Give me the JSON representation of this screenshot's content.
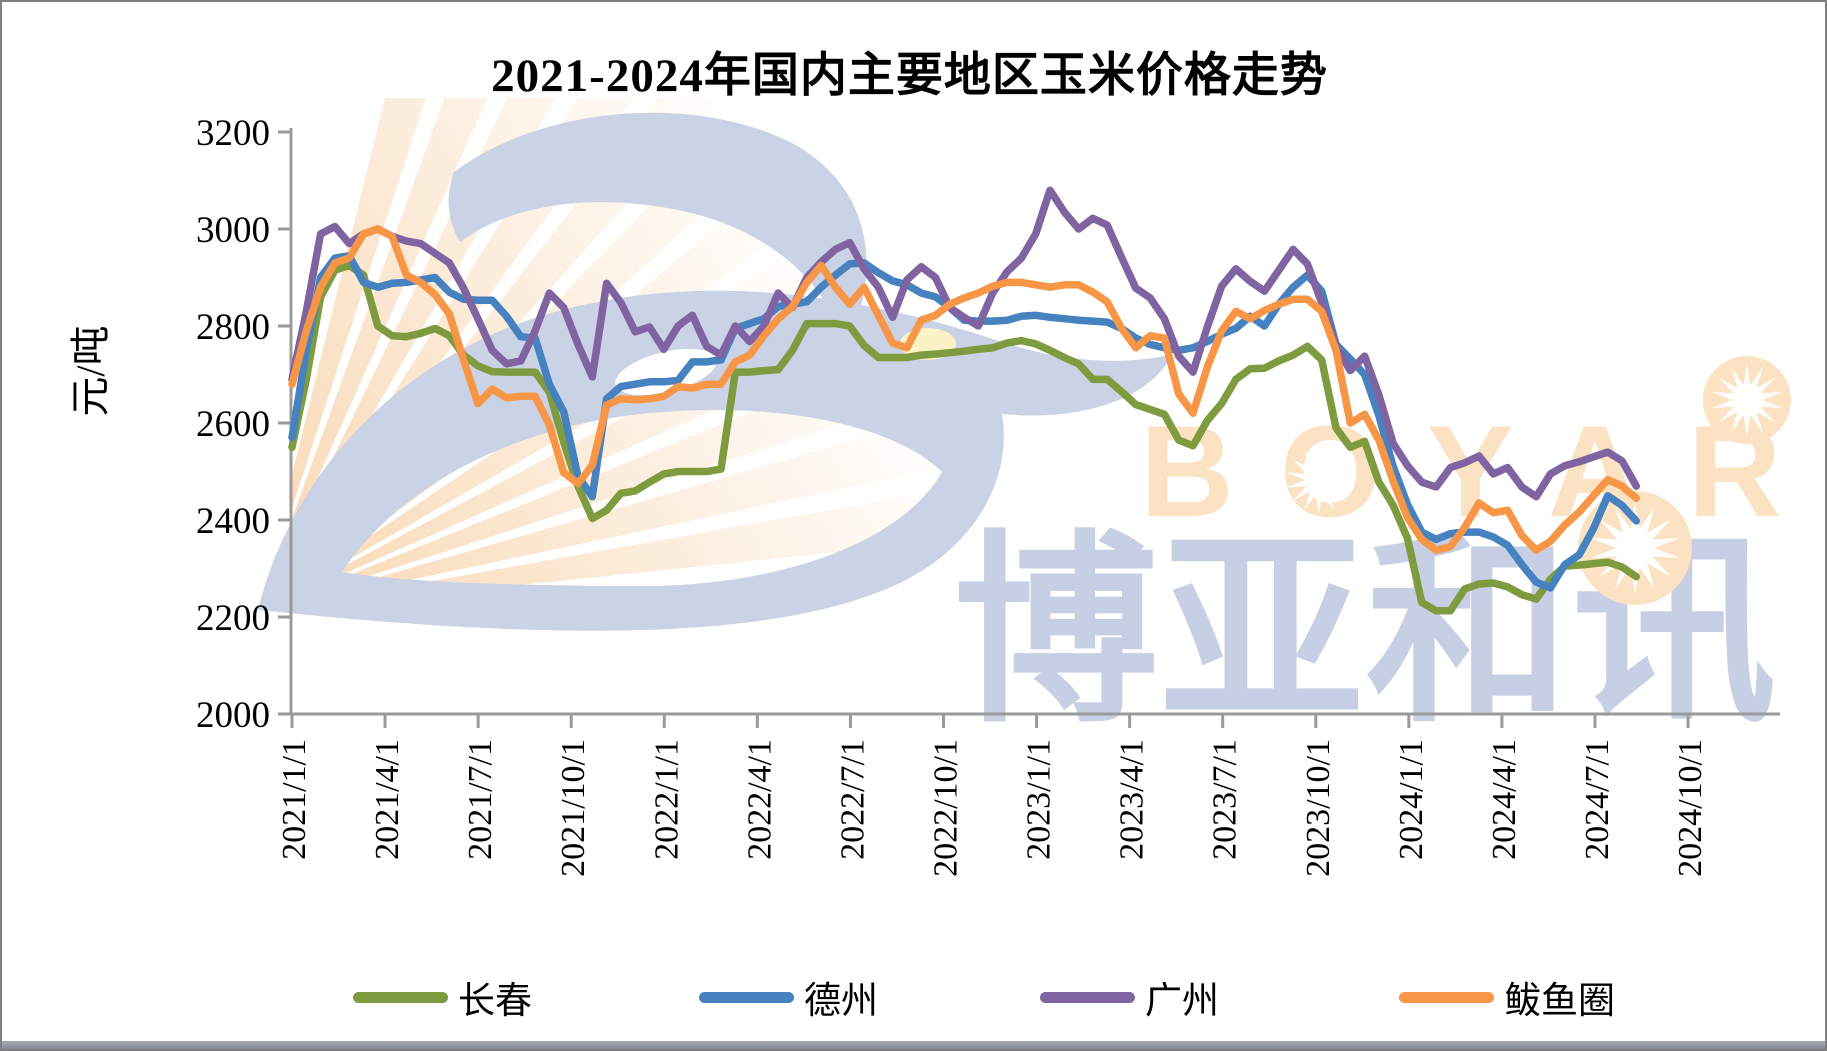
{
  "title": "2021-2024年国内主要地区玉米价格走势",
  "watermark": {
    "cn": "博亚和讯",
    "en": "BOYAR"
  },
  "y_axis": {
    "title": "元/吨",
    "ticks": [
      3200,
      3000,
      2800,
      2600,
      2400,
      2200,
      2000
    ]
  },
  "x_axis": {
    "tick_labels": [
      "2021/1/1",
      "2021/4/1",
      "2021/7/1",
      "2021/10/1",
      "2022/1/1",
      "2022/4/1",
      "2022/7/1",
      "2022/10/1",
      "2023/1/1",
      "2023/4/1",
      "2023/7/1",
      "2023/10/1",
      "2024/1/1",
      "2024/4/1",
      "2024/7/1",
      "2024/10/1"
    ]
  },
  "chart_data": {
    "type": "line",
    "title": "2021-2024年国内主要地区玉米价格走势",
    "xlabel": "",
    "ylabel": "元/吨",
    "ylim": [
      2000,
      3200
    ],
    "y_ticks": [
      3200,
      3000,
      2800,
      2600,
      2400,
      2200,
      2000
    ],
    "x_tick_labels": [
      "2021/1/1",
      "2021/4/1",
      "2021/7/1",
      "2021/10/1",
      "2022/1/1",
      "2022/4/1",
      "2022/7/1",
      "2022/10/1",
      "2023/1/1",
      "2023/4/1",
      "2023/7/1",
      "2023/10/1",
      "2024/1/1",
      "2024/4/1",
      "2024/7/1",
      "2024/10/1"
    ],
    "grid": false,
    "legend_position": "bottom",
    "sampling": {
      "x_start": "2021-01-01",
      "x_step_days": 14,
      "x_end": "2024-08-09"
    },
    "series": [
      {
        "name": "长春",
        "color": "#7e9b40",
        "values": [
          2550,
          2690,
          2860,
          2915,
          2925,
          2905,
          2800,
          2780,
          2778,
          2785,
          2795,
          2780,
          2740,
          2718,
          2706,
          2705,
          2705,
          2705,
          2664,
          2560,
          2470,
          2403,
          2420,
          2455,
          2460,
          2478,
          2495,
          2500,
          2500,
          2500,
          2505,
          2705,
          2705,
          2708,
          2710,
          2750,
          2805,
          2805,
          2805,
          2800,
          2760,
          2735,
          2735,
          2735,
          2740,
          2742,
          2745,
          2748,
          2752,
          2755,
          2765,
          2770,
          2763,
          2750,
          2735,
          2722,
          2690,
          2690,
          2665,
          2638,
          2628,
          2618,
          2565,
          2553,
          2605,
          2640,
          2690,
          2712,
          2713,
          2728,
          2740,
          2758,
          2730,
          2590,
          2550,
          2562,
          2478,
          2430,
          2362,
          2230,
          2213,
          2213,
          2258,
          2268,
          2270,
          2262,
          2246,
          2237,
          2278,
          2305,
          2307,
          2310,
          2313,
          2303,
          2283
        ]
      },
      {
        "name": "德州",
        "color": "#4682c0",
        "values": [
          2570,
          2750,
          2900,
          2940,
          2945,
          2890,
          2880,
          2888,
          2890,
          2895,
          2900,
          2870,
          2855,
          2853,
          2853,
          2820,
          2778,
          2775,
          2680,
          2623,
          2490,
          2448,
          2650,
          2675,
          2680,
          2685,
          2685,
          2688,
          2726,
          2726,
          2730,
          2795,
          2805,
          2815,
          2840,
          2845,
          2850,
          2880,
          2905,
          2928,
          2930,
          2910,
          2893,
          2885,
          2868,
          2860,
          2838,
          2812,
          2810,
          2810,
          2812,
          2820,
          2822,
          2818,
          2815,
          2812,
          2810,
          2808,
          2795,
          2775,
          2762,
          2755,
          2750,
          2755,
          2768,
          2783,
          2795,
          2820,
          2800,
          2845,
          2880,
          2905,
          2872,
          2762,
          2732,
          2700,
          2615,
          2510,
          2432,
          2375,
          2360,
          2372,
          2375,
          2375,
          2365,
          2348,
          2308,
          2272,
          2260,
          2308,
          2328,
          2382,
          2450,
          2430,
          2398
        ]
      },
      {
        "name": "广州",
        "color": "#8064a2",
        "values": [
          2690,
          2830,
          2990,
          3005,
          2970,
          2990,
          3000,
          2985,
          2975,
          2970,
          2950,
          2930,
          2878,
          2815,
          2750,
          2722,
          2728,
          2790,
          2868,
          2838,
          2762,
          2695,
          2888,
          2848,
          2788,
          2798,
          2752,
          2800,
          2822,
          2758,
          2740,
          2800,
          2768,
          2800,
          2868,
          2838,
          2900,
          2932,
          2958,
          2972,
          2918,
          2880,
          2818,
          2895,
          2922,
          2900,
          2838,
          2818,
          2800,
          2868,
          2912,
          2940,
          2990,
          3080,
          3035,
          3000,
          3022,
          3008,
          2942,
          2878,
          2858,
          2815,
          2738,
          2705,
          2798,
          2882,
          2918,
          2892,
          2872,
          2915,
          2958,
          2928,
          2848,
          2758,
          2708,
          2738,
          2658,
          2558,
          2512,
          2478,
          2468,
          2508,
          2518,
          2532,
          2495,
          2508,
          2468,
          2448,
          2495,
          2512,
          2520,
          2530,
          2540,
          2522,
          2470
        ]
      },
      {
        "name": "鲅鱼圈",
        "color": "#f79646",
        "values": [
          2680,
          2790,
          2880,
          2930,
          2940,
          2990,
          3000,
          2985,
          2905,
          2890,
          2865,
          2825,
          2730,
          2640,
          2670,
          2652,
          2655,
          2655,
          2596,
          2498,
          2475,
          2513,
          2637,
          2650,
          2648,
          2650,
          2655,
          2675,
          2672,
          2680,
          2680,
          2726,
          2740,
          2780,
          2815,
          2840,
          2890,
          2925,
          2880,
          2845,
          2880,
          2822,
          2765,
          2755,
          2812,
          2822,
          2845,
          2858,
          2868,
          2882,
          2890,
          2890,
          2885,
          2880,
          2885,
          2885,
          2870,
          2850,
          2795,
          2755,
          2780,
          2775,
          2660,
          2620,
          2715,
          2790,
          2830,
          2815,
          2832,
          2845,
          2855,
          2855,
          2830,
          2750,
          2600,
          2618,
          2565,
          2480,
          2405,
          2360,
          2338,
          2345,
          2385,
          2435,
          2415,
          2420,
          2368,
          2338,
          2356,
          2390,
          2416,
          2450,
          2483,
          2470,
          2445
        ]
      }
    ]
  }
}
